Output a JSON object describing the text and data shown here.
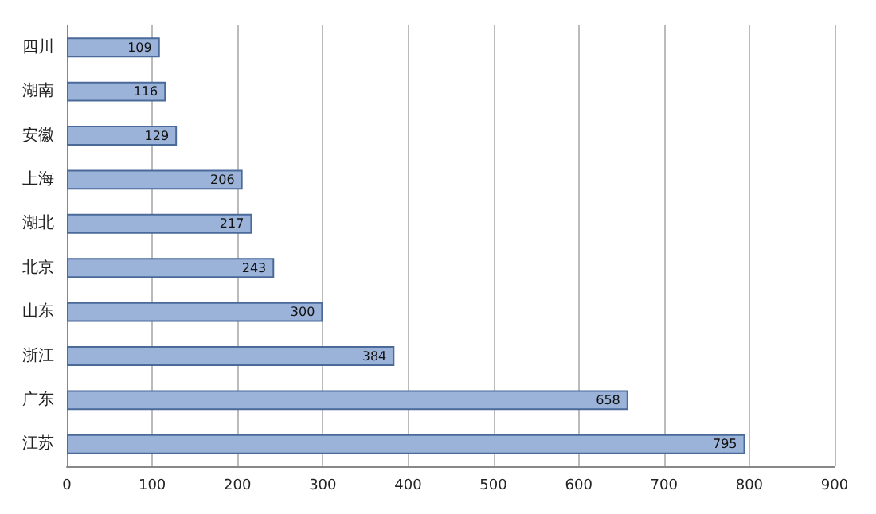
{
  "chart_data": {
    "type": "bar",
    "orientation": "horizontal",
    "categories": [
      "四川",
      "湖南",
      "安徽",
      "上海",
      "湖北",
      "北京",
      "山东",
      "浙江",
      "广东",
      "江苏"
    ],
    "values": [
      109,
      116,
      129,
      206,
      217,
      243,
      300,
      384,
      658,
      795
    ],
    "color": "#9bb3d8",
    "data_labels": true,
    "xlim": [
      0,
      900
    ],
    "xticks": [
      0,
      100,
      200,
      300,
      400,
      500,
      600,
      700,
      800,
      900
    ],
    "grid": "x"
  }
}
